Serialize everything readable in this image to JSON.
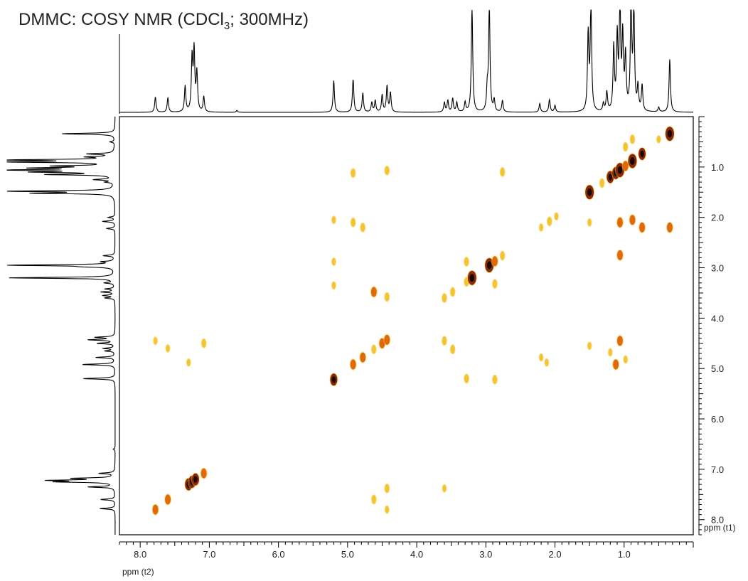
{
  "title": {
    "prefix": "DMMC: COSY NMR (CDCl",
    "subscript": "3",
    "suffix": "; 300MHz)"
  },
  "chart_data": {
    "type": "heatmap",
    "title": "DMMC: COSY NMR (CDCl3; 300MHz)",
    "xlabel": "ppm (t2)",
    "ylabel": "ppm (t1)",
    "xlim": [
      8.3,
      0.0
    ],
    "ylim": [
      0.0,
      8.3
    ],
    "x_reversed": true,
    "x_ticks": [
      "8.0",
      "7.0",
      "6.0",
      "5.0",
      "4.0",
      "3.0",
      "2.0",
      "1.0"
    ],
    "y_ticks": [
      "1.0",
      "2.0",
      "3.0",
      "4.0",
      "5.0",
      "6.0",
      "7.0",
      "8.0"
    ],
    "colors": {
      "weak": "#f4c430",
      "medium": "#e06a0a",
      "strong": "#8a2a08",
      "core": "#1a0805",
      "trace": "#000000"
    },
    "diagonal_peaks": [
      {
        "x": 7.78,
        "y": 7.8,
        "i": 3
      },
      {
        "x": 7.6,
        "y": 7.6,
        "i": 3
      },
      {
        "x": 7.3,
        "y": 7.3,
        "i": 4
      },
      {
        "x": 7.25,
        "y": 7.25,
        "i": 4
      },
      {
        "x": 7.2,
        "y": 7.2,
        "i": 4
      },
      {
        "x": 7.08,
        "y": 7.08,
        "i": 3
      },
      {
        "x": 5.2,
        "y": 5.22,
        "i": 4
      },
      {
        "x": 4.92,
        "y": 4.92,
        "i": 3
      },
      {
        "x": 4.78,
        "y": 4.78,
        "i": 3
      },
      {
        "x": 4.62,
        "y": 4.62,
        "i": 2
      },
      {
        "x": 4.5,
        "y": 4.5,
        "i": 3
      },
      {
        "x": 4.43,
        "y": 4.43,
        "i": 3
      },
      {
        "x": 3.6,
        "y": 3.6,
        "i": 2
      },
      {
        "x": 3.48,
        "y": 3.48,
        "i": 2
      },
      {
        "x": 3.28,
        "y": 3.28,
        "i": 2
      },
      {
        "x": 3.2,
        "y": 3.2,
        "i": 5
      },
      {
        "x": 2.95,
        "y": 2.95,
        "i": 5
      },
      {
        "x": 2.87,
        "y": 2.87,
        "i": 3
      },
      {
        "x": 2.76,
        "y": 2.76,
        "i": 2
      },
      {
        "x": 2.2,
        "y": 2.2,
        "i": 1
      },
      {
        "x": 2.08,
        "y": 2.08,
        "i": 2
      },
      {
        "x": 1.98,
        "y": 1.98,
        "i": 1
      },
      {
        "x": 1.5,
        "y": 1.5,
        "i": 5
      },
      {
        "x": 1.32,
        "y": 1.32,
        "i": 2
      },
      {
        "x": 1.2,
        "y": 1.2,
        "i": 4
      },
      {
        "x": 1.12,
        "y": 1.12,
        "i": 4
      },
      {
        "x": 1.06,
        "y": 1.06,
        "i": 5
      },
      {
        "x": 0.98,
        "y": 0.98,
        "i": 3
      },
      {
        "x": 0.88,
        "y": 0.88,
        "i": 5
      },
      {
        "x": 0.74,
        "y": 0.74,
        "i": 4
      },
      {
        "x": 0.34,
        "y": 0.34,
        "i": 5
      }
    ],
    "cross_peaks": [
      {
        "x": 7.78,
        "y": 4.45,
        "i": 1
      },
      {
        "x": 7.6,
        "y": 4.6,
        "i": 1
      },
      {
        "x": 7.3,
        "y": 4.88,
        "i": 1
      },
      {
        "x": 7.08,
        "y": 4.5,
        "i": 2
      },
      {
        "x": 4.92,
        "y": 1.12,
        "i": 2
      },
      {
        "x": 4.92,
        "y": 2.1,
        "i": 2
      },
      {
        "x": 4.78,
        "y": 2.2,
        "i": 2
      },
      {
        "x": 4.43,
        "y": 1.07,
        "i": 2
      },
      {
        "x": 4.62,
        "y": 3.48,
        "i": 3
      },
      {
        "x": 4.43,
        "y": 3.58,
        "i": 2
      },
      {
        "x": 5.2,
        "y": 2.05,
        "i": 1
      },
      {
        "x": 5.2,
        "y": 2.88,
        "i": 1
      },
      {
        "x": 5.2,
        "y": 3.35,
        "i": 1
      },
      {
        "x": 4.62,
        "y": 7.6,
        "i": 2
      },
      {
        "x": 4.43,
        "y": 7.38,
        "i": 2
      },
      {
        "x": 4.43,
        "y": 7.8,
        "i": 1
      },
      {
        "x": 3.6,
        "y": 4.45,
        "i": 2
      },
      {
        "x": 3.48,
        "y": 4.62,
        "i": 2
      },
      {
        "x": 3.6,
        "y": 7.38,
        "i": 1
      },
      {
        "x": 3.28,
        "y": 5.2,
        "i": 2
      },
      {
        "x": 2.87,
        "y": 5.22,
        "i": 2
      },
      {
        "x": 3.28,
        "y": 2.88,
        "i": 2
      },
      {
        "x": 2.87,
        "y": 3.32,
        "i": 2
      },
      {
        "x": 2.76,
        "y": 1.1,
        "i": 2
      },
      {
        "x": 2.2,
        "y": 4.78,
        "i": 1
      },
      {
        "x": 2.12,
        "y": 4.88,
        "i": 1
      },
      {
        "x": 1.06,
        "y": 2.75,
        "i": 3
      },
      {
        "x": 1.06,
        "y": 4.45,
        "i": 3
      },
      {
        "x": 1.12,
        "y": 4.92,
        "i": 3
      },
      {
        "x": 1.06,
        "y": 2.1,
        "i": 3
      },
      {
        "x": 0.88,
        "y": 2.05,
        "i": 3
      },
      {
        "x": 0.74,
        "y": 2.2,
        "i": 3
      },
      {
        "x": 0.34,
        "y": 2.2,
        "i": 3
      },
      {
        "x": 1.5,
        "y": 4.55,
        "i": 1
      },
      {
        "x": 1.5,
        "y": 2.1,
        "i": 1
      },
      {
        "x": 1.2,
        "y": 4.68,
        "i": 1
      },
      {
        "x": 0.98,
        "y": 4.82,
        "i": 1
      },
      {
        "x": 0.88,
        "y": 0.45,
        "i": 2
      },
      {
        "x": 0.98,
        "y": 0.6,
        "i": 2
      },
      {
        "x": 0.5,
        "y": 0.45,
        "i": 1
      }
    ],
    "projection_peaks": [
      {
        "ppm": 7.78,
        "h": 0.16
      },
      {
        "ppm": 7.6,
        "h": 0.15
      },
      {
        "ppm": 7.35,
        "h": 0.27
      },
      {
        "ppm": 7.25,
        "h": 0.55
      },
      {
        "ppm": 7.22,
        "h": 0.62
      },
      {
        "ppm": 7.18,
        "h": 0.4
      },
      {
        "ppm": 7.08,
        "h": 0.16
      },
      {
        "ppm": 6.6,
        "h": 0.02
      },
      {
        "ppm": 5.2,
        "h": 0.33
      },
      {
        "ppm": 4.92,
        "h": 0.34
      },
      {
        "ppm": 4.78,
        "h": 0.2
      },
      {
        "ppm": 4.65,
        "h": 0.1
      },
      {
        "ppm": 4.6,
        "h": 0.12
      },
      {
        "ppm": 4.5,
        "h": 0.18
      },
      {
        "ppm": 4.43,
        "h": 0.27
      },
      {
        "ppm": 4.38,
        "h": 0.2
      },
      {
        "ppm": 3.6,
        "h": 0.1
      },
      {
        "ppm": 3.55,
        "h": 0.12
      },
      {
        "ppm": 3.48,
        "h": 0.14
      },
      {
        "ppm": 3.42,
        "h": 0.1
      },
      {
        "ppm": 3.3,
        "h": 0.1
      },
      {
        "ppm": 3.2,
        "h": 1.1
      },
      {
        "ppm": 2.98,
        "h": 0.22
      },
      {
        "ppm": 2.95,
        "h": 1.1
      },
      {
        "ppm": 2.88,
        "h": 0.12
      },
      {
        "ppm": 2.76,
        "h": 0.12
      },
      {
        "ppm": 2.22,
        "h": 0.09
      },
      {
        "ppm": 2.08,
        "h": 0.13
      },
      {
        "ppm": 2.0,
        "h": 0.07
      },
      {
        "ppm": 1.52,
        "h": 0.8
      },
      {
        "ppm": 1.48,
        "h": 1.1
      },
      {
        "ppm": 1.3,
        "h": 0.08
      },
      {
        "ppm": 1.25,
        "h": 0.2
      },
      {
        "ppm": 1.15,
        "h": 0.66
      },
      {
        "ppm": 1.1,
        "h": 0.75
      },
      {
        "ppm": 1.06,
        "h": 1.1
      },
      {
        "ppm": 1.02,
        "h": 0.75
      },
      {
        "ppm": 0.98,
        "h": 0.55
      },
      {
        "ppm": 0.9,
        "h": 1.1
      },
      {
        "ppm": 0.86,
        "h": 1.1
      },
      {
        "ppm": 0.8,
        "h": 0.25
      },
      {
        "ppm": 0.74,
        "h": 0.27
      },
      {
        "ppm": 0.5,
        "h": 0.05
      },
      {
        "ppm": 0.34,
        "h": 0.55
      }
    ]
  }
}
